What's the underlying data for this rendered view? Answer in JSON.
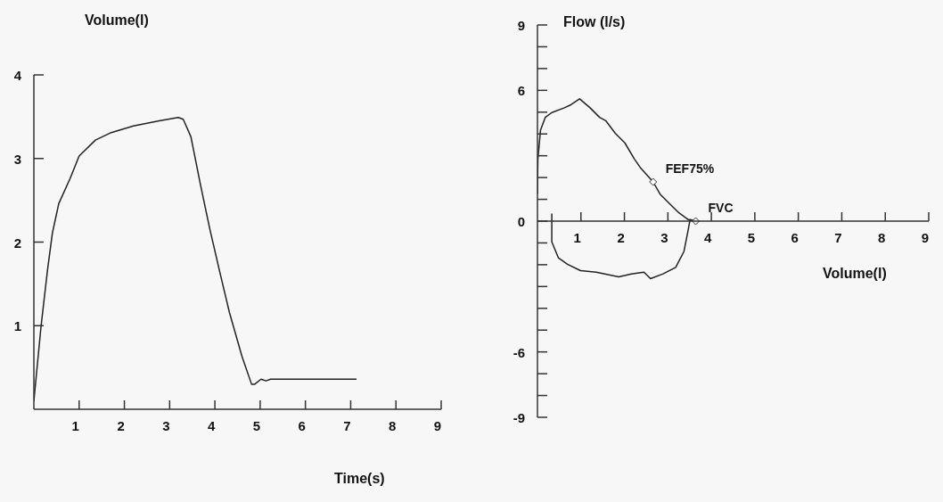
{
  "chart_data": [
    {
      "type": "line",
      "xlabel": "Time(s)",
      "ylabel": "Volume(l)",
      "xlim": [
        0,
        9
      ],
      "xticks": [
        1,
        2,
        3,
        4,
        5,
        6,
        7,
        8,
        9
      ],
      "ylim": [
        0,
        4
      ],
      "yticks": [
        1,
        2,
        3,
        4
      ],
      "series": [
        {
          "color": "#222222",
          "x": [
            0,
            0.16,
            0.3,
            0.41,
            0.55,
            0.8,
            1.0,
            1.36,
            1.71,
            2.2,
            2.77,
            3.19,
            3.3,
            3.47,
            3.68,
            3.89,
            4.1,
            4.32,
            4.6,
            4.81,
            4.88,
            5.02,
            5.13,
            5.23,
            7.13
          ],
          "values": [
            0.1,
            1.0,
            1.66,
            2.11,
            2.46,
            2.76,
            3.03,
            3.22,
            3.31,
            3.39,
            3.45,
            3.49,
            3.47,
            3.26,
            2.69,
            2.15,
            1.66,
            1.16,
            0.63,
            0.3,
            0.3,
            0.36,
            0.34,
            0.36,
            0.36
          ]
        }
      ]
    },
    {
      "type": "line",
      "xlabel": "Volume(l)",
      "ylabel": "Flow (l/s)",
      "xlim": [
        0,
        9
      ],
      "xticks": [
        1,
        2,
        3,
        4,
        5,
        6,
        7,
        8,
        9
      ],
      "ylim": [
        -9,
        9
      ],
      "yticks": [
        -9,
        {
          "value": -8,
          "label": null
        },
        {
          "value": -7,
          "label": null
        },
        -6,
        {
          "value": -5,
          "label": null
        },
        {
          "value": -4,
          "label": null
        },
        {
          "value": -3,
          "label": null
        },
        {
          "value": -2,
          "label": null
        },
        {
          "value": -1,
          "label": null
        },
        0,
        {
          "value": 1,
          "label": null
        },
        {
          "value": 2,
          "label": null
        },
        {
          "value": 3,
          "label": null
        },
        {
          "value": 4,
          "label": null
        },
        {
          "value": 5,
          "label": null
        },
        6,
        {
          "value": 7,
          "label": null
        },
        {
          "value": 8,
          "label": null
        },
        9
      ],
      "series": [
        {
          "color": "#222222",
          "x": [
            0,
            0.01,
            0.07,
            0.18,
            0.33,
            0.62,
            0.77,
            0.97,
            1.21,
            1.43,
            1.57,
            1.79,
            2.01,
            2.23,
            2.38,
            2.66,
            2.82,
            3.04,
            3.26,
            3.47,
            3.64,
            3.51,
            3.47,
            3.37,
            3.18,
            2.89,
            2.6,
            2.45,
            2.16,
            1.87,
            1.35,
            0.99,
            0.69,
            0.48,
            0.33,
            0.33
          ],
          "values": [
            1.24,
            2.85,
            4.17,
            4.76,
            4.98,
            5.2,
            5.34,
            5.61,
            5.2,
            4.76,
            4.61,
            4.03,
            3.59,
            2.85,
            2.42,
            1.8,
            1.24,
            0.8,
            0.37,
            0.07,
            0,
            0.07,
            -0.37,
            -1.39,
            -2.12,
            -2.42,
            -2.64,
            -2.34,
            -2.42,
            -2.56,
            -2.34,
            -2.27,
            -1.98,
            -1.68,
            -0.95,
            0.35
          ]
        }
      ],
      "annotations": [
        {
          "text": "FEF75%",
          "x": 2.66,
          "y": 1.8
        },
        {
          "text": "FVC",
          "x": 3.64,
          "y": 0
        }
      ]
    }
  ]
}
